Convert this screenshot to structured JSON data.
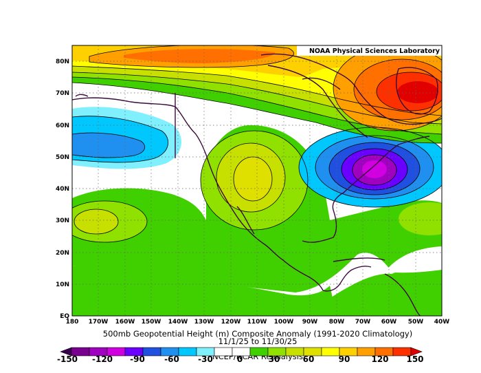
{
  "credit": "NOAA Physical Sciences Laboratory",
  "title": "500mb Geopotential Height (m) Composite Anomaly (1991-2020 Climatology)",
  "date_range": "11/1/25 to 11/30/25",
  "source": "NCEP/NCAR Reanalysis",
  "map": {
    "lon_range": [
      "180",
      "40W"
    ],
    "lat_range": [
      "EQ",
      "85N"
    ],
    "lon_ticks": [
      "180",
      "170W",
      "160W",
      "150W",
      "140W",
      "130W",
      "120W",
      "110W",
      "100W",
      "90W",
      "80W",
      "70W",
      "60W",
      "50W",
      "40W"
    ],
    "lat_ticks": [
      "EQ",
      "10N",
      "20N",
      "30N",
      "40N",
      "50N",
      "60N",
      "70N",
      "80N"
    ],
    "features": [
      {
        "name": "high-anomaly-north-atlantic",
        "level": 150,
        "location": "70N 50W"
      },
      {
        "name": "high-anomaly-arctic",
        "level": 90,
        "location": "80N 150W"
      },
      {
        "name": "ridge-western-us",
        "level": 60,
        "location": "43N 110W"
      },
      {
        "name": "trough-eastern-north-america",
        "level": -120,
        "location": "45N 70W"
      },
      {
        "name": "trough-gulf-of-alaska",
        "level": -60,
        "location": "50N 170W"
      },
      {
        "name": "high-anomaly-subtropical-pacific",
        "level": 30,
        "location": "30N 170W"
      },
      {
        "name": "high-anomaly-subtropical-atlantic",
        "level": 30,
        "location": "30N 45W"
      }
    ]
  },
  "colorbar": {
    "labels": [
      "-150",
      "-120",
      "-90",
      "-60",
      "-30",
      "0",
      "30",
      "60",
      "90",
      "120",
      "150"
    ],
    "colors": [
      "#3c0050",
      "#7a0090",
      "#a000c0",
      "#d000e0",
      "#6a00ff",
      "#2050e0",
      "#2090f0",
      "#00c8ff",
      "#80f0ff",
      "#ffffff",
      "#ffffff",
      "#40d000",
      "#90e000",
      "#c8e000",
      "#e0e000",
      "#ffff00",
      "#ffd000",
      "#ffa000",
      "#ff7000",
      "#ff3000",
      "#e00000"
    ]
  }
}
